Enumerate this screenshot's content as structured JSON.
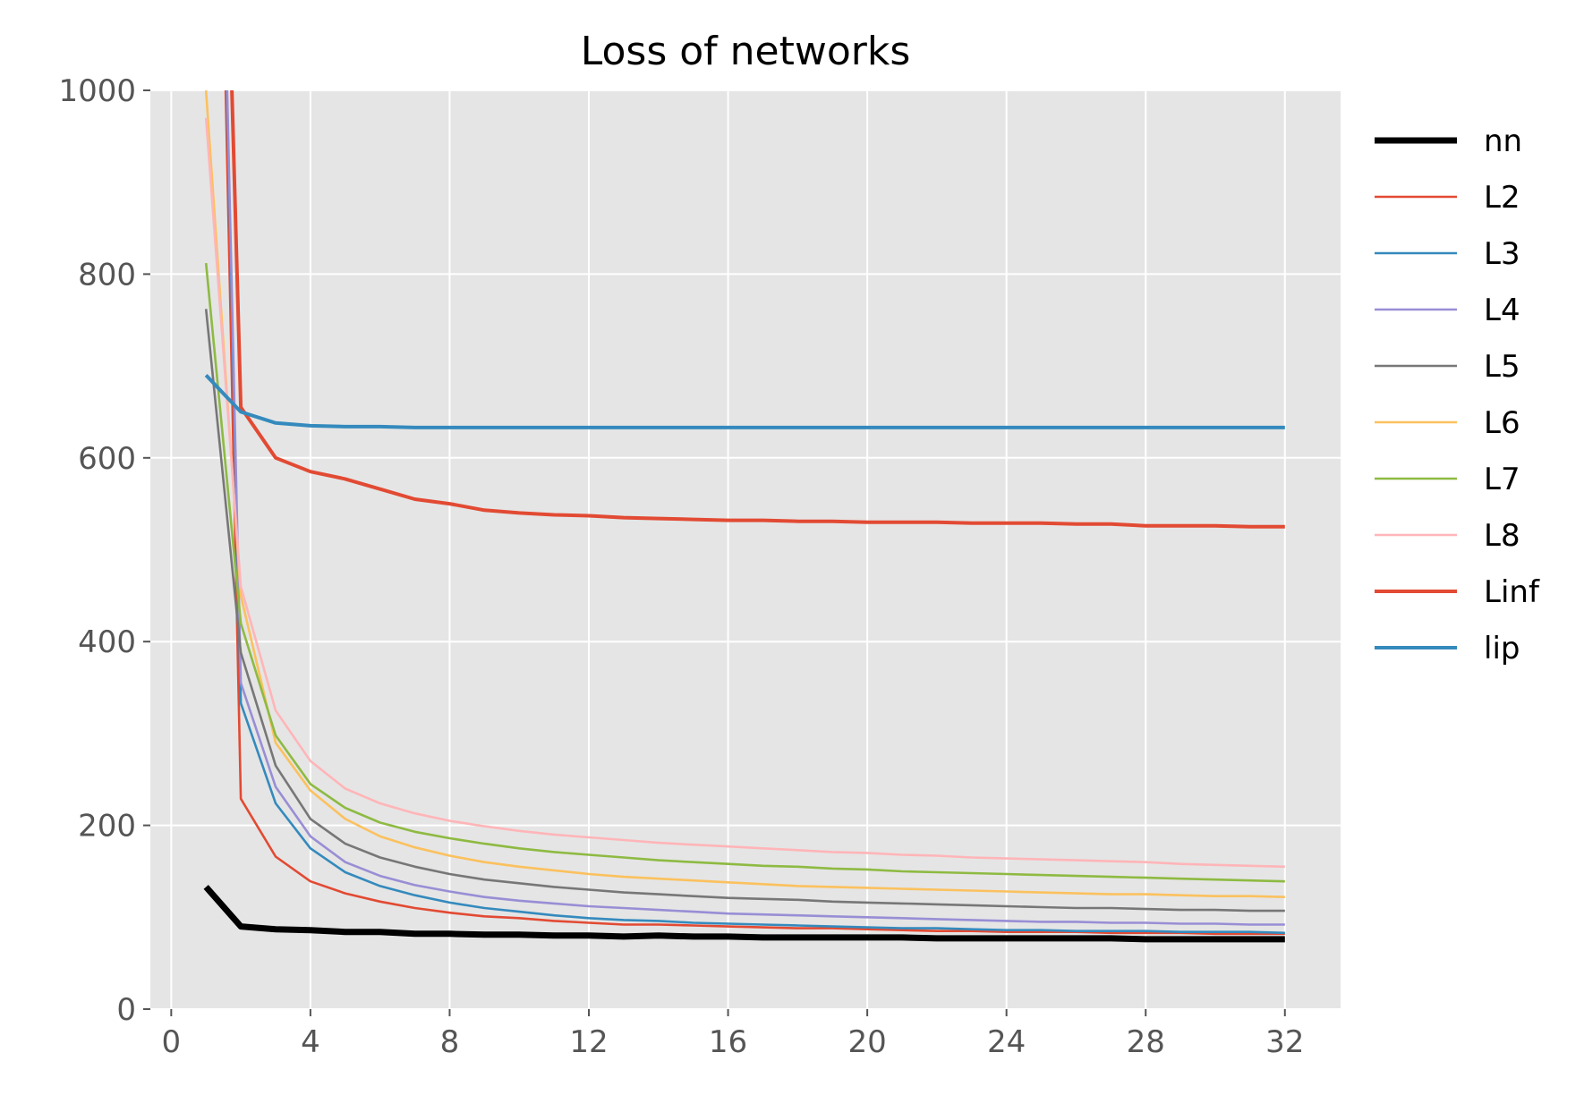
{
  "chart_data": {
    "type": "line",
    "title": "Loss of networks",
    "xlabel": "",
    "ylabel": "",
    "xlim": [
      -0.6,
      33.6
    ],
    "ylim": [
      0,
      1000
    ],
    "xticks": [
      0,
      4,
      8,
      12,
      16,
      20,
      24,
      28,
      32
    ],
    "yticks": [
      0,
      200,
      400,
      600,
      800,
      1000
    ],
    "grid": true,
    "legend_position": "outside right",
    "x": [
      1,
      2,
      3,
      4,
      5,
      6,
      7,
      8,
      9,
      10,
      11,
      12,
      13,
      14,
      15,
      16,
      17,
      18,
      19,
      20,
      21,
      22,
      23,
      24,
      25,
      26,
      27,
      28,
      29,
      30,
      31,
      32
    ],
    "series": [
      {
        "name": "nn",
        "color": "#000000",
        "width": 7,
        "values": [
          133,
          90,
          87,
          86,
          84,
          84,
          82,
          82,
          81,
          81,
          80,
          80,
          79,
          80,
          79,
          79,
          78,
          78,
          78,
          78,
          78,
          77,
          77,
          77,
          77,
          77,
          77,
          76,
          76,
          76,
          76,
          76
        ]
      },
      {
        "name": "L2",
        "color": "#e24a33",
        "width": 2.6,
        "values": [
          2000,
          229,
          166,
          139,
          126,
          117,
          110,
          105,
          101,
          99,
          96,
          94,
          92,
          92,
          91,
          90,
          89,
          88,
          88,
          87,
          86,
          85,
          85,
          84,
          84,
          84,
          83,
          83,
          83,
          82,
          82,
          82
        ]
      },
      {
        "name": "L3",
        "color": "#348abd",
        "width": 2.6,
        "values": [
          2000,
          333,
          224,
          175,
          149,
          134,
          124,
          116,
          110,
          106,
          102,
          99,
          97,
          96,
          94,
          93,
          92,
          91,
          90,
          89,
          88,
          88,
          87,
          86,
          86,
          85,
          85,
          85,
          84,
          84,
          84,
          83
        ]
      },
      {
        "name": "L4",
        "color": "#988ed5",
        "width": 2.6,
        "values": [
          2000,
          355,
          242,
          188,
          160,
          145,
          135,
          128,
          122,
          118,
          115,
          112,
          110,
          108,
          106,
          104,
          103,
          102,
          101,
          100,
          99,
          98,
          97,
          96,
          95,
          95,
          94,
          94,
          93,
          93,
          92,
          92
        ]
      },
      {
        "name": "L5",
        "color": "#777777",
        "width": 2.6,
        "values": [
          762,
          388,
          265,
          207,
          180,
          165,
          155,
          147,
          141,
          137,
          133,
          130,
          127,
          125,
          123,
          121,
          120,
          119,
          117,
          116,
          115,
          114,
          113,
          112,
          111,
          110,
          110,
          109,
          108,
          108,
          107,
          107
        ]
      },
      {
        "name": "L6",
        "color": "#fbc15e",
        "width": 2.6,
        "values": [
          1000,
          450,
          290,
          238,
          207,
          188,
          176,
          167,
          160,
          155,
          151,
          147,
          144,
          142,
          140,
          138,
          136,
          134,
          133,
          132,
          131,
          130,
          129,
          128,
          127,
          126,
          125,
          125,
          124,
          123,
          123,
          122
        ]
      },
      {
        "name": "L7",
        "color": "#8eba42",
        "width": 2.6,
        "values": [
          812,
          420,
          298,
          245,
          219,
          203,
          193,
          186,
          180,
          175,
          171,
          168,
          165,
          162,
          160,
          158,
          156,
          155,
          153,
          152,
          150,
          149,
          148,
          147,
          146,
          145,
          144,
          143,
          142,
          141,
          140,
          139
        ]
      },
      {
        "name": "L8",
        "color": "#ffb5b8",
        "width": 2.6,
        "values": [
          970,
          460,
          325,
          270,
          240,
          224,
          213,
          205,
          199,
          194,
          190,
          187,
          184,
          181,
          179,
          177,
          175,
          173,
          171,
          170,
          168,
          167,
          165,
          164,
          163,
          162,
          161,
          160,
          158,
          157,
          156,
          155
        ]
      },
      {
        "name": "Linf",
        "color": "#e24a33",
        "width": 4,
        "values": [
          2000,
          655,
          600,
          585,
          577,
          566,
          555,
          550,
          543,
          540,
          538,
          537,
          535,
          534,
          533,
          532,
          532,
          531,
          531,
          530,
          530,
          530,
          529,
          529,
          529,
          528,
          528,
          526,
          526,
          526,
          525,
          525
        ]
      },
      {
        "name": "lip",
        "color": "#348abd",
        "width": 4,
        "values": [
          690,
          650,
          638,
          635,
          634,
          634,
          633,
          633,
          633,
          633,
          633,
          633,
          633,
          633,
          633,
          633,
          633,
          633,
          633,
          633,
          633,
          633,
          633,
          633,
          633,
          633,
          633,
          633,
          633,
          633,
          633,
          633
        ]
      }
    ]
  }
}
